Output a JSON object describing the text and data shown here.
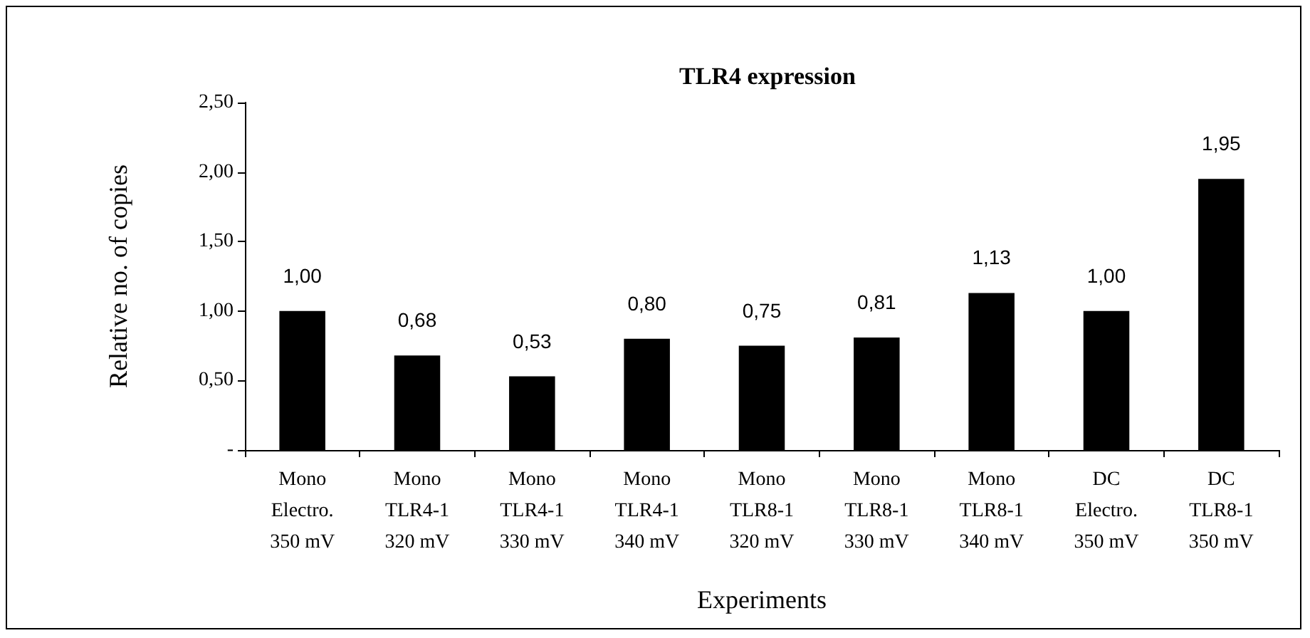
{
  "chart_data": {
    "type": "bar",
    "title": "TLR4 expression",
    "xlabel": "Experiments",
    "ylabel": "Relative no. of copies",
    "categories": [
      "Mono\nElectro.\n350 mV",
      "Mono\nTLR4-1\n320 mV",
      "Mono\nTLR4-1\n330 mV",
      "Mono\nTLR4-1\n340 mV",
      "Mono\nTLR8-1\n320 mV",
      "Mono\nTLR8-1\n330 mV",
      "Mono\nTLR8-1\n340 mV",
      "DC\nElectro.\n350 mV",
      "DC\nTLR8-1\n350 mV"
    ],
    "values": [
      1.0,
      0.68,
      0.53,
      0.8,
      0.75,
      0.81,
      1.13,
      1.0,
      1.95
    ],
    "value_labels": [
      "1,00",
      "0,68",
      "0,53",
      "0,80",
      "0,75",
      "0,81",
      "1,13",
      "1,00",
      "1,95"
    ],
    "color": "#000000",
    "ylim": [
      0,
      2.5
    ],
    "yticks": [
      {
        "value": 0,
        "label": "-"
      },
      {
        "value": 0.5,
        "label": "0,50"
      },
      {
        "value": 1,
        "label": "1,00"
      },
      {
        "value": 1.5,
        "label": "1,50"
      },
      {
        "value": 2,
        "label": "2,00"
      },
      {
        "value": 2.5,
        "label": "2,50"
      }
    ],
    "grid": false
  }
}
